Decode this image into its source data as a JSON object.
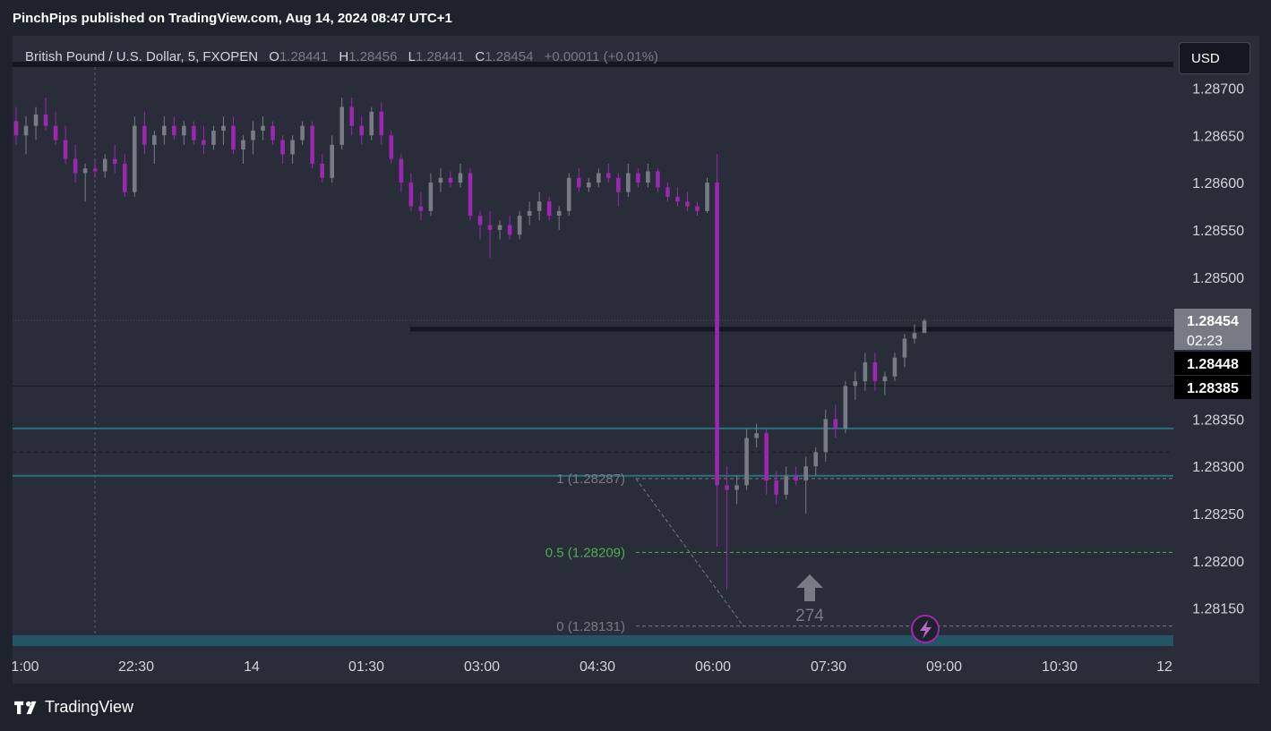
{
  "header": {
    "published": "PinchPips published on TradingView.com, Aug 14, 2024 08:47 UTC+1"
  },
  "legend": {
    "symbol": "British Pound / U.S. Dollar, 5, FXOPEN",
    "o_label": "O",
    "o_value": "1.28441",
    "h_label": "H",
    "h_value": "1.28456",
    "l_label": "L",
    "l_value": "1.28441",
    "c_label": "C",
    "c_value": "1.28454",
    "change": "+0.00011 (+0.01%)"
  },
  "currency_button": "USD",
  "footer": {
    "brand": "TradingView"
  },
  "colors": {
    "up": "#787b86",
    "down": "#9c27b0",
    "zone": "#2a6f7f",
    "fib_gray": "#787b86",
    "fib_green": "#4caf50",
    "background": "#292d39"
  },
  "chart_data": {
    "type": "candlestick",
    "ylim": [
      1.2811,
      1.28725
    ],
    "y_ticks": [
      "1.28700",
      "1.28650",
      "1.28600",
      "1.28550",
      "1.28500",
      "1.28350",
      "1.28300",
      "1.28250",
      "1.28200",
      "1.28150"
    ],
    "x_ticks": [
      "1:00",
      "22:30",
      "14",
      "01:30",
      "03:00",
      "04:30",
      "06:00",
      "07:30",
      "09:00",
      "10:30",
      "12"
    ],
    "price_labels": [
      {
        "text": "1.28454",
        "sub": "02:23",
        "price": 1.28454,
        "style": "current"
      },
      {
        "text": "1.28448",
        "price": 1.28448,
        "style": "dark"
      },
      {
        "text": "1.28385",
        "price": 1.28385,
        "style": "dark"
      }
    ],
    "fib_levels": [
      {
        "label": "1 (1.28287)",
        "price": 1.28287,
        "color": "#787b86"
      },
      {
        "label": "0.5 (1.28209)",
        "price": 1.28209,
        "color": "#4caf50"
      },
      {
        "label": "0 (1.28131)",
        "price": 1.28131,
        "color": "#787b86"
      }
    ],
    "horizontal_lines": [
      {
        "price": 1.28445,
        "style": "thick-dark"
      },
      {
        "price": 1.28385,
        "style": "thin-dark"
      },
      {
        "price": 1.2834,
        "style": "zone"
      },
      {
        "price": 1.28315,
        "style": "dashed-dark"
      },
      {
        "price": 1.2829,
        "style": "zone"
      }
    ],
    "arrow_annotation": {
      "text": "274",
      "price": 1.2818
    },
    "candles": [
      [
        1.28665,
        1.2868,
        1.2864,
        1.2865
      ],
      [
        1.2865,
        1.2867,
        1.2863,
        1.2866
      ],
      [
        1.2866,
        1.2868,
        1.28645,
        1.28672
      ],
      [
        1.28672,
        1.2869,
        1.28655,
        1.2866
      ],
      [
        1.2866,
        1.28675,
        1.2864,
        1.28645
      ],
      [
        1.28645,
        1.2866,
        1.2862,
        1.28625
      ],
      [
        1.28625,
        1.2864,
        1.286,
        1.2861
      ],
      [
        1.2861,
        1.2862,
        1.2858,
        1.28615
      ],
      [
        1.28615,
        1.28625,
        1.28605,
        1.28612
      ],
      [
        1.28612,
        1.2863,
        1.28605,
        1.28625
      ],
      [
        1.28625,
        1.2864,
        1.2861,
        1.2862
      ],
      [
        1.2862,
        1.2863,
        1.28585,
        1.2859
      ],
      [
        1.2859,
        1.2867,
        1.28585,
        1.2866
      ],
      [
        1.2866,
        1.28675,
        1.2863,
        1.2864
      ],
      [
        1.2864,
        1.28655,
        1.2862,
        1.2865
      ],
      [
        1.2865,
        1.2867,
        1.2864,
        1.2866
      ],
      [
        1.2866,
        1.2867,
        1.28645,
        1.2865
      ],
      [
        1.2865,
        1.28665,
        1.2864,
        1.2866
      ],
      [
        1.2866,
        1.28665,
        1.2864,
        1.28645
      ],
      [
        1.28645,
        1.2866,
        1.2863,
        1.2864
      ],
      [
        1.2864,
        1.2866,
        1.28635,
        1.28655
      ],
      [
        1.28655,
        1.2867,
        1.2864,
        1.2866
      ],
      [
        1.2866,
        1.2867,
        1.2863,
        1.28635
      ],
      [
        1.28635,
        1.2865,
        1.2862,
        1.28645
      ],
      [
        1.28645,
        1.28665,
        1.2863,
        1.28655
      ],
      [
        1.28655,
        1.2867,
        1.28645,
        1.2866
      ],
      [
        1.2866,
        1.28665,
        1.2864,
        1.28645
      ],
      [
        1.28645,
        1.2865,
        1.2862,
        1.2863
      ],
      [
        1.2863,
        1.2865,
        1.2862,
        1.28645
      ],
      [
        1.28645,
        1.28665,
        1.2864,
        1.2866
      ],
      [
        1.2866,
        1.28665,
        1.28615,
        1.2862
      ],
      [
        1.2862,
        1.2863,
        1.286,
        1.28605
      ],
      [
        1.28605,
        1.2865,
        1.286,
        1.2864
      ],
      [
        1.2864,
        1.2869,
        1.28635,
        1.2868
      ],
      [
        1.2868,
        1.2869,
        1.2865,
        1.2866
      ],
      [
        1.2866,
        1.2867,
        1.2864,
        1.2865
      ],
      [
        1.2865,
        1.2868,
        1.28645,
        1.28675
      ],
      [
        1.28675,
        1.28685,
        1.2864,
        1.2865
      ],
      [
        1.2865,
        1.28655,
        1.2862,
        1.28625
      ],
      [
        1.28625,
        1.2863,
        1.2859,
        1.286
      ],
      [
        1.286,
        1.2861,
        1.2857,
        1.28575
      ],
      [
        1.28575,
        1.2859,
        1.2856,
        1.2857
      ],
      [
        1.2857,
        1.2861,
        1.28565,
        1.286
      ],
      [
        1.286,
        1.28615,
        1.2859,
        1.28605
      ],
      [
        1.28605,
        1.28612,
        1.28595,
        1.286
      ],
      [
        1.286,
        1.2862,
        1.28595,
        1.2861
      ],
      [
        1.2861,
        1.28615,
        1.2856,
        1.28565
      ],
      [
        1.28565,
        1.2857,
        1.2854,
        1.28555
      ],
      [
        1.28555,
        1.2857,
        1.2852,
        1.2855
      ],
      [
        1.2855,
        1.2856,
        1.2854,
        1.28555
      ],
      [
        1.28555,
        1.28565,
        1.2854,
        1.28545
      ],
      [
        1.28545,
        1.2857,
        1.2854,
        1.28565
      ],
      [
        1.28565,
        1.2858,
        1.28555,
        1.2857
      ],
      [
        1.2857,
        1.2859,
        1.2856,
        1.2858
      ],
      [
        1.2858,
        1.28585,
        1.2856,
        1.28565
      ],
      [
        1.28565,
        1.28575,
        1.2855,
        1.2857
      ],
      [
        1.2857,
        1.2861,
        1.28565,
        1.28605
      ],
      [
        1.28605,
        1.28615,
        1.2859,
        1.28595
      ],
      [
        1.28595,
        1.28605,
        1.2859,
        1.286
      ],
      [
        1.286,
        1.28615,
        1.28595,
        1.2861
      ],
      [
        1.2861,
        1.2862,
        1.286,
        1.28605
      ],
      [
        1.28605,
        1.2861,
        1.28575,
        1.2859
      ],
      [
        1.2859,
        1.2862,
        1.28585,
        1.2861
      ],
      [
        1.2861,
        1.28615,
        1.28595,
        1.286
      ],
      [
        1.286,
        1.2862,
        1.28595,
        1.28612
      ],
      [
        1.28612,
        1.28615,
        1.2859,
        1.28595
      ],
      [
        1.28595,
        1.286,
        1.2858,
        1.28585
      ],
      [
        1.28585,
        1.28595,
        1.28575,
        1.2858
      ],
      [
        1.2858,
        1.2859,
        1.2857,
        1.28575
      ],
      [
        1.28575,
        1.2858,
        1.28565,
        1.2857
      ],
      [
        1.2857,
        1.28605,
        1.28568,
        1.286
      ],
      [
        1.286,
        1.2863,
        1.28215,
        1.2828
      ],
      [
        1.2828,
        1.283,
        1.2817,
        1.28275
      ],
      [
        1.28275,
        1.2829,
        1.2826,
        1.2828
      ],
      [
        1.2828,
        1.2834,
        1.28275,
        1.2833
      ],
      [
        1.2833,
        1.28345,
        1.2832,
        1.28335
      ],
      [
        1.28335,
        1.2834,
        1.2827,
        1.28285
      ],
      [
        1.28285,
        1.28295,
        1.2826,
        1.2827
      ],
      [
        1.2827,
        1.283,
        1.28265,
        1.2829
      ],
      [
        1.2829,
        1.283,
        1.2828,
        1.28285
      ],
      [
        1.28285,
        1.2831,
        1.2825,
        1.283
      ],
      [
        1.283,
        1.2832,
        1.2829,
        1.28315
      ],
      [
        1.28315,
        1.2836,
        1.28305,
        1.2835
      ],
      [
        1.2835,
        1.28365,
        1.2833,
        1.2834
      ],
      [
        1.2834,
        1.2839,
        1.28335,
        1.28385
      ],
      [
        1.28385,
        1.284,
        1.2837,
        1.2839
      ],
      [
        1.2839,
        1.2842,
        1.2838,
        1.2841
      ],
      [
        1.2841,
        1.2842,
        1.2838,
        1.2839
      ],
      [
        1.2839,
        1.284,
        1.28375,
        1.28395
      ],
      [
        1.28395,
        1.2842,
        1.2839,
        1.28415
      ],
      [
        1.28415,
        1.2844,
        1.28405,
        1.28435
      ],
      [
        1.28435,
        1.2845,
        1.2843,
        1.28441
      ],
      [
        1.28441,
        1.28456,
        1.28441,
        1.28454
      ]
    ]
  }
}
